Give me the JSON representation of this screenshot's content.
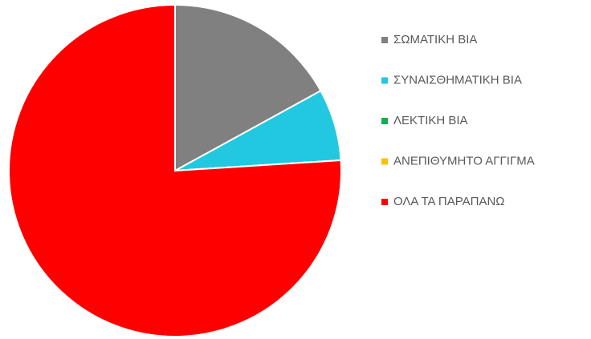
{
  "chart_data": {
    "type": "pie",
    "categories": [
      "ΣΩΜΑΤΙΚΗ ΒΙΑ",
      "ΣΥΝΑΙΣΘΗΜΑΤΙΚΗ ΒΙΑ",
      "ΛΕΚΤΙΚΗ ΒΙΑ",
      "ΑΝΕΠΙΘΥΜΗΤΟ ΑΓΓΙΓΜΑ",
      "ΟΛΑ ΤΑ ΠΑΡΑΠΑΝΩ"
    ],
    "values": [
      17,
      7,
      0,
      0,
      76
    ],
    "colors": [
      "#808080",
      "#22c8e0",
      "#10b050",
      "#ffc000",
      "#ff0000"
    ],
    "legend": "right"
  }
}
